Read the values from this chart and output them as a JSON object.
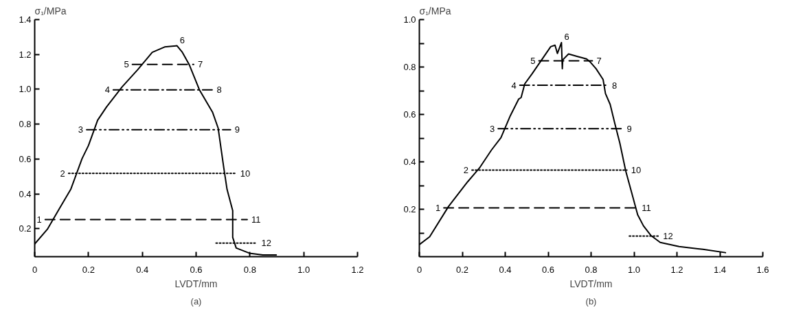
{
  "chart_data": [
    {
      "type": "line",
      "title": "(a)",
      "xlabel": "LVDT/mm",
      "ylabel": "σ₁/MPa",
      "grid": false,
      "xlim": [
        0,
        1.2
      ],
      "xticks": [
        0,
        0.2,
        0.4,
        0.6,
        0.8,
        {
          "value": 1.0,
          "label": "1.0"
        },
        1.2
      ],
      "ylim": [
        0.04,
        1.4
      ],
      "yticks": [
        0.2,
        0.4,
        0.6,
        0.8,
        {
          "value": 1.0,
          "label": "1.0"
        },
        1.2,
        1.4
      ],
      "series": [
        {
          "color": "#000000",
          "line_style": "solid",
          "x": [
            0,
            0.047,
            0.093,
            0.134,
            0.176,
            0.2,
            0.234,
            0.267,
            0.325,
            0.383,
            0.437,
            0.483,
            0.529,
            0.549,
            0.574,
            0.612,
            0.661,
            0.682,
            0.703,
            0.715,
            0.736,
            0.736,
            0.749,
            0.798,
            0.848,
            0.898
          ],
          "values": [
            0.113,
            0.197,
            0.319,
            0.426,
            0.602,
            0.678,
            0.823,
            0.899,
            1.014,
            1.113,
            1.212,
            1.243,
            1.25,
            1.212,
            1.143,
            0.998,
            0.869,
            0.777,
            0.548,
            0.426,
            0.304,
            0.151,
            0.09,
            0.06,
            0.05,
            0.05
          ]
        },
        {
          "color": "#000000",
          "line_style": "dashed",
          "x": [
            0.039,
            0.79
          ],
          "values": [
            0.253,
            0.253
          ]
        },
        {
          "color": "#000000",
          "line_style": "dotted",
          "x": [
            0.126,
            0.749
          ],
          "values": [
            0.518,
            0.518
          ]
        },
        {
          "color": "#000000",
          "line_style": "dashdotdot",
          "x": [
            0.193,
            0.728
          ],
          "values": [
            0.768,
            0.768
          ]
        },
        {
          "color": "#000000",
          "line_style": "dashdot",
          "x": [
            0.292,
            0.661
          ],
          "values": [
            0.997,
            0.997
          ]
        },
        {
          "color": "#000000",
          "line_style": "dashed",
          "x": [
            0.363,
            0.591
          ],
          "values": [
            1.143,
            1.143
          ]
        },
        {
          "color": "#000000",
          "line_style": "dotted",
          "x": [
            0.674,
            0.827
          ],
          "values": [
            0.118,
            0.118
          ]
        }
      ],
      "annotations": [
        {
          "text": "1",
          "x": 0.039,
          "y": 0.253
        },
        {
          "text": "2",
          "x": 0.126,
          "y": 0.518
        },
        {
          "text": "3",
          "x": 0.193,
          "y": 0.768
        },
        {
          "text": "4",
          "x": 0.292,
          "y": 0.997
        },
        {
          "text": "5",
          "x": 0.363,
          "y": 1.143
        },
        {
          "text": "6",
          "x": 0.529,
          "y": 1.25
        },
        {
          "text": "7",
          "x": 0.591,
          "y": 1.143
        },
        {
          "text": "8",
          "x": 0.661,
          "y": 0.997
        },
        {
          "text": "9",
          "x": 0.728,
          "y": 0.768
        },
        {
          "text": "10",
          "x": 0.749,
          "y": 0.518
        },
        {
          "text": "11",
          "x": 0.79,
          "y": 0.253
        },
        {
          "text": "12",
          "x": 0.827,
          "y": 0.118
        }
      ]
    },
    {
      "type": "line",
      "title": "(b)",
      "xlabel": "LVDT/mm",
      "ylabel": "σ₁/MPa",
      "grid": false,
      "xlim": [
        0,
        1.6
      ],
      "xticks": [
        0,
        0.2,
        0.4,
        0.6,
        0.8,
        {
          "value": 1.0,
          "label": "1.0"
        },
        1.2,
        1.4,
        1.6
      ],
      "ylim": [
        0,
        1.0
      ],
      "yticks": [
        {
          "value": 0.1,
          "label": null
        },
        0.2,
        {
          "value": 0.3,
          "label": null
        },
        0.4,
        {
          "value": 0.5,
          "label": null
        },
        0.6,
        {
          "value": 0.7,
          "label": null
        },
        0.8,
        {
          "value": 0.9,
          "label": null
        },
        {
          "value": 1.0,
          "label": "1.0"
        }
      ],
      "series": [
        {
          "color": "#000000",
          "line_style": "solid",
          "x": [
            0,
            0.048,
            0.136,
            0.225,
            0.28,
            0.336,
            0.38,
            0.424,
            0.463,
            0.474,
            0.491,
            0.524,
            0.568,
            0.612,
            0.632,
            0.643,
            0.662,
            0.666,
            0.668,
            0.695,
            0.734,
            0.779,
            0.795,
            0.823,
            0.856,
            0.867,
            0.889,
            0.911,
            0.934,
            0.961,
            0.989,
            1.017,
            1.044,
            1.078,
            1.122,
            1.21,
            1.321,
            1.426
          ],
          "values": [
            0.051,
            0.084,
            0.212,
            0.316,
            0.374,
            0.45,
            0.502,
            0.595,
            0.665,
            0.671,
            0.729,
            0.77,
            0.828,
            0.886,
            0.892,
            0.857,
            0.903,
            0.793,
            0.83,
            0.855,
            0.845,
            0.834,
            0.822,
            0.793,
            0.747,
            0.688,
            0.642,
            0.56,
            0.479,
            0.363,
            0.27,
            0.177,
            0.13,
            0.09,
            0.06,
            0.043,
            0.031,
            0.017
          ]
        },
        {
          "color": "#000000",
          "line_style": "dashed",
          "x": [
            0.114,
            1.017
          ],
          "values": [
            0.206,
            0.206
          ]
        },
        {
          "color": "#000000",
          "line_style": "dotted",
          "x": [
            0.245,
            0.967
          ],
          "values": [
            0.365,
            0.365
          ]
        },
        {
          "color": "#000000",
          "line_style": "dashdotdot",
          "x": [
            0.367,
            0.947
          ],
          "values": [
            0.54,
            0.54
          ]
        },
        {
          "color": "#000000",
          "line_style": "dashdot",
          "x": [
            0.468,
            0.878
          ],
          "values": [
            0.723,
            0.723
          ]
        },
        {
          "color": "#000000",
          "line_style": "dashed",
          "x": [
            0.557,
            0.806
          ],
          "values": [
            0.826,
            0.826
          ]
        },
        {
          "color": "#000000",
          "line_style": "dotted",
          "x": [
            0.978,
            1.116
          ],
          "values": [
            0.087,
            0.087
          ]
        }
      ],
      "annotations": [
        {
          "text": "1",
          "x": 0.114,
          "y": 0.206
        },
        {
          "text": "2",
          "x": 0.245,
          "y": 0.365
        },
        {
          "text": "3",
          "x": 0.367,
          "y": 0.54
        },
        {
          "text": "4",
          "x": 0.468,
          "y": 0.723
        },
        {
          "text": "5",
          "x": 0.557,
          "y": 0.826
        },
        {
          "text": "6",
          "x": 0.662,
          "y": 0.903
        },
        {
          "text": "7",
          "x": 0.806,
          "y": 0.826
        },
        {
          "text": "8",
          "x": 0.878,
          "y": 0.723
        },
        {
          "text": "9",
          "x": 0.947,
          "y": 0.54
        },
        {
          "text": "10",
          "x": 0.967,
          "y": 0.365
        },
        {
          "text": "11",
          "x": 1.017,
          "y": 0.206
        },
        {
          "text": "12",
          "x": 1.116,
          "y": 0.087
        }
      ]
    }
  ]
}
